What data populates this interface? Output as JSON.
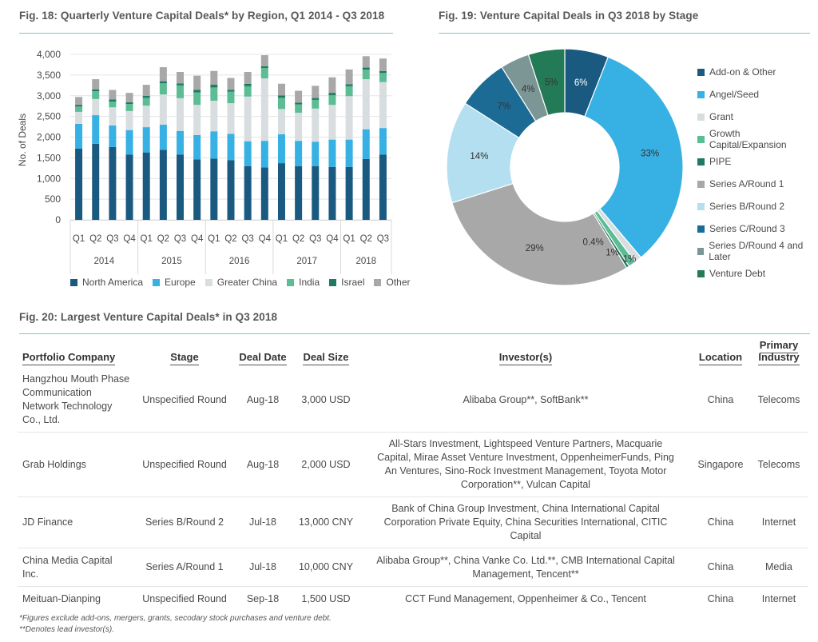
{
  "figures": {
    "fig18_title": "Fig. 18: Quarterly Venture Capital Deals* by Region, Q1 2014 - Q3 2018",
    "fig19_title": "Fig. 19: Venture Capital Deals in Q3 2018 by Stage",
    "fig20_title": "Fig. 20: Largest Venture Capital Deals* in Q3 2018"
  },
  "chart_data": [
    {
      "type": "bar",
      "stacked": true,
      "title": "Fig. 18: Quarterly Venture Capital Deals* by Region, Q1 2014 - Q3 2018",
      "xlabel": "",
      "ylabel": "No. of Deals",
      "ylim": [
        0,
        4000
      ],
      "yticks": [
        0,
        500,
        1000,
        1500,
        2000,
        2500,
        3000,
        3500,
        4000
      ],
      "ytick_labels": [
        "0",
        "500",
        "1,000",
        "1,500",
        "2,000",
        "2,500",
        "3,000",
        "3,500",
        "4,000"
      ],
      "grid": true,
      "legend_position": "bottom",
      "categories": [
        "Q1",
        "Q2",
        "Q3",
        "Q4",
        "Q1",
        "Q2",
        "Q3",
        "Q4",
        "Q1",
        "Q2",
        "Q3",
        "Q4",
        "Q1",
        "Q2",
        "Q3",
        "Q4",
        "Q1",
        "Q2",
        "Q3"
      ],
      "year_groups": [
        {
          "label": "2014",
          "count": 4
        },
        {
          "label": "2015",
          "count": 4
        },
        {
          "label": "2016",
          "count": 4
        },
        {
          "label": "2017",
          "count": 4
        },
        {
          "label": "2018",
          "count": 3
        }
      ],
      "series": [
        {
          "name": "North America",
          "color": "#1b5a80",
          "values": [
            1720,
            1840,
            1760,
            1580,
            1630,
            1690,
            1580,
            1460,
            1480,
            1440,
            1300,
            1270,
            1370,
            1300,
            1300,
            1280,
            1280,
            1470,
            1580
          ]
        },
        {
          "name": "Europe",
          "color": "#37b0e3",
          "values": [
            600,
            690,
            520,
            590,
            610,
            610,
            570,
            590,
            660,
            640,
            600,
            640,
            700,
            610,
            590,
            660,
            660,
            720,
            640
          ]
        },
        {
          "name": "Greater China",
          "color": "#d8dedf",
          "values": [
            290,
            390,
            440,
            460,
            520,
            730,
            790,
            730,
            740,
            740,
            1080,
            1510,
            610,
            680,
            800,
            840,
            1050,
            1210,
            1110
          ]
        },
        {
          "name": "India",
          "color": "#5cbc94",
          "values": [
            130,
            190,
            140,
            170,
            190,
            270,
            310,
            300,
            320,
            280,
            250,
            250,
            270,
            200,
            210,
            230,
            240,
            230,
            220
          ]
        },
        {
          "name": "Israel",
          "color": "#1e7a62",
          "values": [
            40,
            40,
            50,
            40,
            45,
            50,
            45,
            65,
            65,
            45,
            60,
            45,
            55,
            45,
            45,
            60,
            50,
            50,
            45
          ]
        },
        {
          "name": "Other",
          "color": "#a8a8a8",
          "values": [
            190,
            250,
            230,
            230,
            270,
            340,
            280,
            340,
            335,
            285,
            285,
            265,
            285,
            285,
            295,
            375,
            355,
            275,
            305
          ]
        }
      ]
    },
    {
      "type": "pie",
      "donut": true,
      "title": "Fig. 19: Venture Capital Deals in Q3 2018 by Stage",
      "legend_position": "right",
      "slices": [
        {
          "label": "Add-on & Other",
          "value": 6,
          "display": "6%",
          "color": "#1b5a80"
        },
        {
          "label": "Angel/Seed",
          "value": 33,
          "display": "33%",
          "color": "#37b0e3"
        },
        {
          "label": "Grant",
          "value": 1,
          "display": "1%",
          "color": "#d8dedf"
        },
        {
          "label": "Growth Capital/Expansion",
          "value": 1,
          "display": "1%",
          "color": "#5cbc94"
        },
        {
          "label": "PIPE",
          "value": 0.4,
          "display": "0.4%",
          "color": "#1e7a62"
        },
        {
          "label": "Series A/Round 1",
          "value": 29,
          "display": "29%",
          "color": "#a8a8a8"
        },
        {
          "label": "Series B/Round 2",
          "value": 14,
          "display": "14%",
          "color": "#b4dff1"
        },
        {
          "label": "Series C/Round 3",
          "value": 7,
          "display": "7%",
          "color": "#1c6b94"
        },
        {
          "label": "Series D/Round 4 and Later",
          "value": 4,
          "display": "4%",
          "color": "#7c9595"
        },
        {
          "label": "Venture Debt",
          "value": 5,
          "display": "5%",
          "color": "#237a56"
        }
      ]
    },
    {
      "type": "table",
      "title": "Fig. 20: Largest Venture Capital Deals* in Q3 2018",
      "columns": [
        "Portfolio Company",
        "Stage",
        "Deal Date",
        "Deal Size",
        "Investor(s)",
        "Location",
        "Primary Industry"
      ],
      "rows": [
        [
          "Hangzhou Mouth Phase Communication Network Technology Co., Ltd.",
          "Unspecified Round",
          "Aug-18",
          "3,000 USD",
          "Alibaba Group**, SoftBank**",
          "China",
          "Telecoms"
        ],
        [
          "Grab Holdings",
          "Unspecified Round",
          "Aug-18",
          "2,000 USD",
          "All-Stars Investment, Lightspeed Venture Partners, Macquarie Capital, Mirae Asset Venture Investment, OppenheimerFunds, Ping An Ventures, Sino-Rock Investment Management, Toyota Motor Corporation**, Vulcan Capital",
          "Singapore",
          "Telecoms"
        ],
        [
          "JD Finance",
          "Series B/Round 2",
          "Jul-18",
          "13,000 CNY",
          "Bank of China Group Investment, China International Capital Corporation Private Equity, China Securities International, CITIC Capital",
          "China",
          "Internet"
        ],
        [
          "China Media Capital Inc.",
          "Series A/Round 1",
          "Jul-18",
          "10,000 CNY",
          "Alibaba Group**, China Vanke Co. Ltd.**, CMB International Capital Management, Tencent**",
          "China",
          "Media"
        ],
        [
          "Meituan-Dianping",
          "Unspecified Round",
          "Sep-18",
          "1,500 USD",
          "CCT Fund Management, Oppenheimer & Co., Tencent",
          "China",
          "Internet"
        ]
      ]
    }
  ],
  "footnotes": {
    "note1": "*Figures exclude add-ons, mergers, grants, secodary stock purchases and venture debt.",
    "note2": "**Denotes lead investor(s)."
  }
}
